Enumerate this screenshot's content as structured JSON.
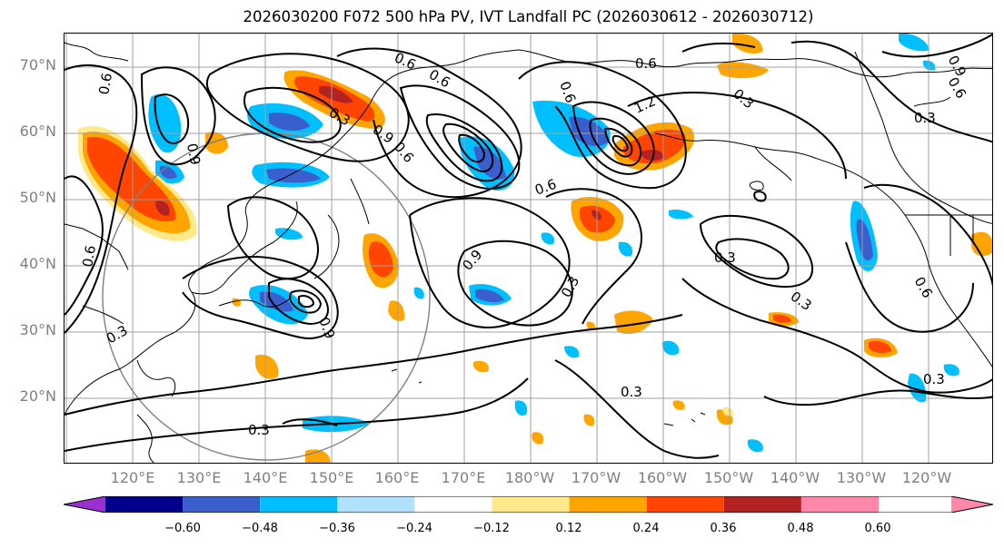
{
  "title": "2026030200 F072 500 hPa PV, IVT Landfall PC (2026030612 - 2026030712)",
  "lat_labels": [
    "70°N",
    "60°N",
    "50°N",
    "40°N",
    "30°N",
    "20°N"
  ],
  "lon_labels": [
    "120°E",
    "130°E",
    "140°E",
    "150°E",
    "160°E",
    "170°E",
    "180°W",
    "170°W",
    "160°W",
    "150°W",
    "140°W",
    "130°W",
    "120°W"
  ],
  "contour_labels": [
    "0.6",
    "0.9",
    "0.6",
    "0.3",
    "0.6",
    "0.6",
    "0.9",
    "0.6",
    "0.3",
    "0.9",
    "1.2",
    "0.6",
    "0.6",
    "0.3",
    "0.6",
    "0.9",
    "0.3",
    "0.3",
    "0.3",
    "0.3",
    "0.3",
    "0.6",
    "0.3",
    "0.3",
    "0.9",
    "0.6"
  ],
  "colorbar": {
    "ticks": [
      "−0.60",
      "−0.48",
      "−0.36",
      "−0.24",
      "−0.12",
      "0.12",
      "0.24",
      "0.36",
      "0.48",
      "0.60"
    ],
    "colors": [
      "#9b30d0",
      "#00008b",
      "#3a5fcd",
      "#00bfff",
      "#b0e2ff",
      "#ffffff",
      "#ffe98a",
      "#ffa500",
      "#ff4500",
      "#b22222",
      "#ff88aa"
    ]
  },
  "colors": {
    "neg_strong": "#3a5fcd",
    "neg_mid": "#00bfff",
    "neg_weak": "#b0e2ff",
    "pos_weak": "#ffe98a",
    "pos_mid": "#ffa500",
    "pos_strong": "#ff4500",
    "pos_max": "#b22222",
    "grid": "#a0a0a0"
  }
}
